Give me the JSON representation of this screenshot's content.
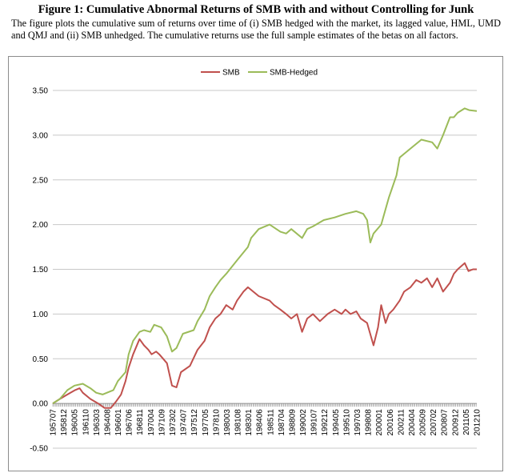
{
  "figure": {
    "title": "Figure 1:  Cumulative Abnormal Returns of SMB with and without Controlling for Junk",
    "description": "The figure plots the cumulative sum of returns over time of (i) SMB hedged with the market, its lagged value, HML, UMD and QMJ and (ii) SMB unhedged. The cumulative returns use the full sample estimates of the betas on all factors."
  },
  "chart_data": {
    "type": "line",
    "title": "",
    "xlabel": "",
    "ylabel": "",
    "ylim": [
      -0.5,
      3.5
    ],
    "yticks": [
      "-0.50",
      "0.00",
      "0.50",
      "1.00",
      "1.50",
      "2.00",
      "2.50",
      "3.00",
      "3.50"
    ],
    "xticks": [
      "195707",
      "195812",
      "196005",
      "196110",
      "196303",
      "196408",
      "196601",
      "196706",
      "196811",
      "197004",
      "197109",
      "197302",
      "197407",
      "197512",
      "197705",
      "197810",
      "198003",
      "198108",
      "198301",
      "198406",
      "198511",
      "198704",
      "198809",
      "199002",
      "199107",
      "199212",
      "199405",
      "199510",
      "199703",
      "199808",
      "200001",
      "200106",
      "200211",
      "200404",
      "200509",
      "200702",
      "200807",
      "200912",
      "201105",
      "201210"
    ],
    "x_range": [
      "1957-07",
      "2012-12"
    ],
    "grid": "horizontal",
    "legend_position": "top-center",
    "series": [
      {
        "name": "SMB",
        "color": "#c0504d",
        "points": [
          [
            "1957-07",
            0.0
          ],
          [
            "1958-06",
            0.05
          ],
          [
            "1959-06",
            0.1
          ],
          [
            "1960-06",
            0.15
          ],
          [
            "1961-01",
            0.17
          ],
          [
            "1961-06",
            0.12
          ],
          [
            "1962-06",
            0.05
          ],
          [
            "1963-06",
            0.0
          ],
          [
            "1964-04",
            -0.05
          ],
          [
            "1965-02",
            -0.05
          ],
          [
            "1965-10",
            0.02
          ],
          [
            "1966-06",
            0.1
          ],
          [
            "1967-01",
            0.25
          ],
          [
            "1967-06",
            0.4
          ],
          [
            "1968-01",
            0.55
          ],
          [
            "1968-11",
            0.72
          ],
          [
            "1969-06",
            0.65
          ],
          [
            "1970-01",
            0.6
          ],
          [
            "1970-06",
            0.55
          ],
          [
            "1971-01",
            0.58
          ],
          [
            "1971-06",
            0.55
          ],
          [
            "1972-06",
            0.45
          ],
          [
            "1973-02",
            0.2
          ],
          [
            "1973-09",
            0.18
          ],
          [
            "1974-04",
            0.35
          ],
          [
            "1975-06",
            0.42
          ],
          [
            "1976-06",
            0.6
          ],
          [
            "1977-05",
            0.7
          ],
          [
            "1978-01",
            0.85
          ],
          [
            "1978-10",
            0.95
          ],
          [
            "1979-06",
            1.0
          ],
          [
            "1980-03",
            1.1
          ],
          [
            "1981-01",
            1.05
          ],
          [
            "1981-08",
            1.15
          ],
          [
            "1982-06",
            1.25
          ],
          [
            "1983-01",
            1.3
          ],
          [
            "1984-06",
            1.2
          ],
          [
            "1985-11",
            1.15
          ],
          [
            "1986-06",
            1.1
          ],
          [
            "1987-04",
            1.05
          ],
          [
            "1988-01",
            1.0
          ],
          [
            "1988-09",
            0.95
          ],
          [
            "1989-06",
            1.0
          ],
          [
            "1990-02",
            0.8
          ],
          [
            "1990-10",
            0.95
          ],
          [
            "1991-07",
            1.0
          ],
          [
            "1992-06",
            0.92
          ],
          [
            "1993-06",
            1.0
          ],
          [
            "1994-05",
            1.05
          ],
          [
            "1995-04",
            1.0
          ],
          [
            "1995-10",
            1.05
          ],
          [
            "1996-06",
            1.0
          ],
          [
            "1997-03",
            1.03
          ],
          [
            "1997-10",
            0.95
          ],
          [
            "1998-08",
            0.9
          ],
          [
            "1999-06",
            0.65
          ],
          [
            "2000-01",
            0.85
          ],
          [
            "2000-06",
            1.1
          ],
          [
            "2001-01",
            0.9
          ],
          [
            "2001-06",
            1.0
          ],
          [
            "2002-01",
            1.05
          ],
          [
            "2002-11",
            1.15
          ],
          [
            "2003-06",
            1.25
          ],
          [
            "2004-04",
            1.3
          ],
          [
            "2005-01",
            1.38
          ],
          [
            "2005-09",
            1.35
          ],
          [
            "2006-06",
            1.4
          ],
          [
            "2007-02",
            1.3
          ],
          [
            "2007-10",
            1.4
          ],
          [
            "2008-07",
            1.25
          ],
          [
            "2009-06",
            1.35
          ],
          [
            "2009-12",
            1.45
          ],
          [
            "2010-06",
            1.5
          ],
          [
            "2011-05",
            1.57
          ],
          [
            "2011-11",
            1.48
          ],
          [
            "2012-06",
            1.5
          ],
          [
            "2012-12",
            1.5
          ]
        ]
      },
      {
        "name": "SMB-Hedged",
        "color": "#9bbb59",
        "points": [
          [
            "1957-07",
            0.0
          ],
          [
            "1958-06",
            0.05
          ],
          [
            "1959-06",
            0.15
          ],
          [
            "1960-05",
            0.2
          ],
          [
            "1961-06",
            0.22
          ],
          [
            "1962-06",
            0.17
          ],
          [
            "1963-03",
            0.12
          ],
          [
            "1964-01",
            0.1
          ],
          [
            "1964-08",
            0.12
          ],
          [
            "1965-06",
            0.15
          ],
          [
            "1966-01",
            0.25
          ],
          [
            "1967-01",
            0.35
          ],
          [
            "1967-06",
            0.55
          ],
          [
            "1968-01",
            0.7
          ],
          [
            "1968-11",
            0.8
          ],
          [
            "1969-06",
            0.82
          ],
          [
            "1970-04",
            0.8
          ],
          [
            "1970-10",
            0.88
          ],
          [
            "1971-09",
            0.85
          ],
          [
            "1972-06",
            0.75
          ],
          [
            "1973-02",
            0.58
          ],
          [
            "1973-09",
            0.62
          ],
          [
            "1974-07",
            0.78
          ],
          [
            "1975-12",
            0.82
          ],
          [
            "1976-06",
            0.92
          ],
          [
            "1977-05",
            1.05
          ],
          [
            "1978-01",
            1.2
          ],
          [
            "1978-10",
            1.3
          ],
          [
            "1979-06",
            1.38
          ],
          [
            "1980-03",
            1.45
          ],
          [
            "1981-08",
            1.6
          ],
          [
            "1983-01",
            1.75
          ],
          [
            "1983-06",
            1.85
          ],
          [
            "1984-06",
            1.95
          ],
          [
            "1985-11",
            2.0
          ],
          [
            "1987-04",
            1.92
          ],
          [
            "1988-01",
            1.9
          ],
          [
            "1988-09",
            1.95
          ],
          [
            "1990-02",
            1.85
          ],
          [
            "1990-10",
            1.95
          ],
          [
            "1991-07",
            1.98
          ],
          [
            "1992-12",
            2.05
          ],
          [
            "1994-05",
            2.08
          ],
          [
            "1995-10",
            2.12
          ],
          [
            "1997-03",
            2.15
          ],
          [
            "1998-02",
            2.12
          ],
          [
            "1998-08",
            2.05
          ],
          [
            "1999-01",
            1.8
          ],
          [
            "1999-06",
            1.9
          ],
          [
            "2000-06",
            2.0
          ],
          [
            "2001-06",
            2.3
          ],
          [
            "2002-06",
            2.55
          ],
          [
            "2002-11",
            2.75
          ],
          [
            "2004-04",
            2.85
          ],
          [
            "2005-09",
            2.95
          ],
          [
            "2007-02",
            2.92
          ],
          [
            "2007-10",
            2.85
          ],
          [
            "2008-07",
            3.0
          ],
          [
            "2009-06",
            3.2
          ],
          [
            "2009-12",
            3.2
          ],
          [
            "2010-06",
            3.25
          ],
          [
            "2011-05",
            3.3
          ],
          [
            "2011-12",
            3.28
          ],
          [
            "2012-12",
            3.27
          ]
        ]
      }
    ]
  }
}
